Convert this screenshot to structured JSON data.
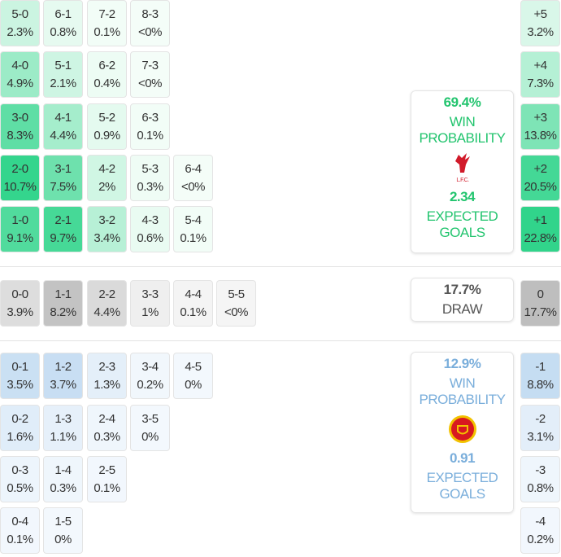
{
  "colors": {
    "home": "#22c46e",
    "away": "#7aaedb",
    "draw": "#555555"
  },
  "home_rows": [
    [
      [
        "5-0",
        "2.3%"
      ],
      [
        "6-1",
        "0.8%"
      ],
      [
        "7-2",
        "0.1%"
      ],
      [
        "8-3",
        "<0%"
      ]
    ],
    [
      [
        "4-0",
        "4.9%"
      ],
      [
        "5-1",
        "2.1%"
      ],
      [
        "6-2",
        "0.4%"
      ],
      [
        "7-3",
        "<0%"
      ]
    ],
    [
      [
        "3-0",
        "8.3%"
      ],
      [
        "4-1",
        "4.4%"
      ],
      [
        "5-2",
        "0.9%"
      ],
      [
        "6-3",
        "0.1%"
      ]
    ],
    [
      [
        "2-0",
        "10.7%"
      ],
      [
        "3-1",
        "7.5%"
      ],
      [
        "4-2",
        "2%"
      ],
      [
        "5-3",
        "0.3%"
      ],
      [
        "6-4",
        "<0%"
      ]
    ],
    [
      [
        "1-0",
        "9.1%"
      ],
      [
        "2-1",
        "9.7%"
      ],
      [
        "3-2",
        "3.4%"
      ],
      [
        "4-3",
        "0.6%"
      ],
      [
        "5-4",
        "0.1%"
      ]
    ]
  ],
  "draw_row": [
    [
      "0-0",
      "3.9%"
    ],
    [
      "1-1",
      "8.2%"
    ],
    [
      "2-2",
      "4.4%"
    ],
    [
      "3-3",
      "1%"
    ],
    [
      "4-4",
      "0.1%"
    ],
    [
      "5-5",
      "<0%"
    ]
  ],
  "away_rows": [
    [
      [
        "0-1",
        "3.5%"
      ],
      [
        "1-2",
        "3.7%"
      ],
      [
        "2-3",
        "1.3%"
      ],
      [
        "3-4",
        "0.2%"
      ],
      [
        "4-5",
        "0%"
      ]
    ],
    [
      [
        "0-2",
        "1.6%"
      ],
      [
        "1-3",
        "1.1%"
      ],
      [
        "2-4",
        "0.3%"
      ],
      [
        "3-5",
        "0%"
      ]
    ],
    [
      [
        "0-3",
        "0.5%"
      ],
      [
        "1-4",
        "0.3%"
      ],
      [
        "2-5",
        "0.1%"
      ]
    ],
    [
      [
        "0-4",
        "0.1%"
      ],
      [
        "1-5",
        "0%"
      ]
    ]
  ],
  "margins_home": [
    [
      "+5",
      "3.2%"
    ],
    [
      "+4",
      "7.3%"
    ],
    [
      "+3",
      "13.8%"
    ],
    [
      "+2",
      "20.5%"
    ],
    [
      "+1",
      "22.8%"
    ]
  ],
  "margin_draw": [
    "0",
    "17.7%"
  ],
  "margins_away": [
    [
      "-1",
      "8.8%"
    ],
    [
      "-2",
      "3.1%"
    ],
    [
      "-3",
      "0.8%"
    ],
    [
      "-4",
      "0.2%"
    ]
  ],
  "home_card": {
    "win_pct": "69.4%",
    "win_label_1": "WIN",
    "win_label_2": "PROBABILITY",
    "logo_text": "L.F.C.",
    "xg": "2.34",
    "xg_label_1": "EXPECTED",
    "xg_label_2": "GOALS"
  },
  "draw_card": {
    "pct": "17.7%",
    "label": "DRAW"
  },
  "away_card": {
    "win_pct": "12.9%",
    "win_label_1": "WIN",
    "win_label_2": "PROBABILITY",
    "xg": "0.91",
    "xg_label_1": "EXPECTED",
    "xg_label_2": "GOALS"
  }
}
